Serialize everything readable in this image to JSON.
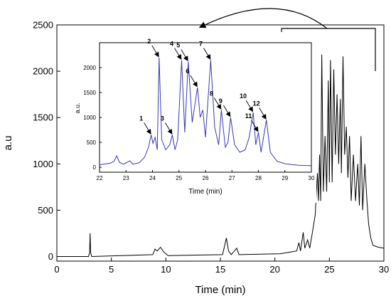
{
  "chart_data": [
    {
      "type": "line",
      "xlabel": "Time (min)",
      "ylabel": "a.u",
      "xlim": [
        0,
        30
      ],
      "ylim": [
        -50,
        2500
      ],
      "xticks": [
        0,
        5,
        10,
        15,
        20,
        25,
        30
      ],
      "yticks": [
        0,
        500,
        1000,
        1500,
        2000,
        2500
      ],
      "grid": false,
      "series": [
        {
          "color": "#000000",
          "points": [
            [
              0,
              0
            ],
            [
              2.9,
              0
            ],
            [
              3.0,
              40
            ],
            [
              3.05,
              250
            ],
            [
              3.1,
              40
            ],
            [
              3.2,
              0
            ],
            [
              8.8,
              20
            ],
            [
              9.0,
              80
            ],
            [
              9.2,
              60
            ],
            [
              9.5,
              100
            ],
            [
              9.8,
              50
            ],
            [
              10.2,
              10
            ],
            [
              15.2,
              20
            ],
            [
              15.55,
              200
            ],
            [
              15.75,
              60
            ],
            [
              16.0,
              20
            ],
            [
              16.5,
              90
            ],
            [
              16.7,
              20
            ],
            [
              20.5,
              30
            ],
            [
              21.5,
              50
            ],
            [
              22.0,
              60
            ],
            [
              22.2,
              150
            ],
            [
              22.35,
              60
            ],
            [
              22.6,
              260
            ],
            [
              22.75,
              90
            ],
            [
              23.0,
              180
            ],
            [
              23.2,
              90
            ],
            [
              23.5,
              300
            ],
            [
              23.7,
              450
            ],
            [
              23.9,
              900
            ],
            [
              24.0,
              600
            ],
            [
              24.1,
              1100
            ],
            [
              24.2,
              600
            ],
            [
              24.3,
              2180
            ],
            [
              24.45,
              700
            ],
            [
              24.6,
              1300
            ],
            [
              24.75,
              700
            ],
            [
              24.9,
              1900
            ],
            [
              25.0,
              800
            ],
            [
              25.1,
              2120
            ],
            [
              25.25,
              800
            ],
            [
              25.4,
              2020
            ],
            [
              25.55,
              1100
            ],
            [
              25.7,
              1750
            ],
            [
              25.85,
              1000
            ],
            [
              26.0,
              1700
            ],
            [
              26.1,
              900
            ],
            [
              26.25,
              2160
            ],
            [
              26.4,
              1100
            ],
            [
              26.55,
              1400
            ],
            [
              26.7,
              850
            ],
            [
              26.85,
              1300
            ],
            [
              27.0,
              600
            ],
            [
              27.2,
              1100
            ],
            [
              27.4,
              600
            ],
            [
              27.6,
              1000
            ],
            [
              27.75,
              550
            ],
            [
              27.9,
              1300
            ],
            [
              28.05,
              500
            ],
            [
              28.25,
              1000
            ],
            [
              28.45,
              600
            ],
            [
              28.6,
              350
            ],
            [
              28.8,
              200
            ],
            [
              29.0,
              120
            ],
            [
              29.5,
              100
            ],
            [
              30,
              90
            ]
          ]
        }
      ],
      "annotations": [
        "bracket over 21–30 min",
        "curved arrow pointing to inset"
      ]
    },
    {
      "type": "line",
      "xlabel": "Time (min)",
      "ylabel": "a.u.",
      "xlim": [
        22,
        30
      ],
      "ylim": [
        -100,
        2500
      ],
      "xticks": [
        22,
        23,
        24,
        25,
        26,
        27,
        28,
        29,
        30
      ],
      "yticks": [
        0,
        500,
        1000,
        1500,
        2000
      ],
      "grid": false,
      "series": [
        {
          "color": "#3a3ab0",
          "points": [
            [
              22,
              50
            ],
            [
              22.4,
              80
            ],
            [
              22.55,
              120
            ],
            [
              22.65,
              230
            ],
            [
              22.75,
              100
            ],
            [
              22.9,
              60
            ],
            [
              23.05,
              100
            ],
            [
              23.15,
              130
            ],
            [
              23.25,
              60
            ],
            [
              23.5,
              90
            ],
            [
              23.7,
              200
            ],
            [
              23.85,
              400
            ],
            [
              23.95,
              650
            ],
            [
              24.02,
              480
            ],
            [
              24.1,
              600
            ],
            [
              24.18,
              350
            ],
            [
              24.25,
              2200
            ],
            [
              24.35,
              550
            ],
            [
              24.5,
              350
            ],
            [
              24.65,
              450
            ],
            [
              24.75,
              650
            ],
            [
              24.85,
              350
            ],
            [
              24.95,
              550
            ],
            [
              25.1,
              2150
            ],
            [
              25.22,
              700
            ],
            [
              25.35,
              2120
            ],
            [
              25.5,
              900
            ],
            [
              25.7,
              1600
            ],
            [
              25.8,
              1000
            ],
            [
              25.9,
              1150
            ],
            [
              26.0,
              600
            ],
            [
              26.2,
              2150
            ],
            [
              26.35,
              800
            ],
            [
              26.5,
              450
            ],
            [
              26.6,
              1150
            ],
            [
              26.75,
              400
            ],
            [
              26.85,
              500
            ],
            [
              26.95,
              1000
            ],
            [
              27.1,
              450
            ],
            [
              27.3,
              300
            ],
            [
              27.5,
              350
            ],
            [
              27.65,
              600
            ],
            [
              27.8,
              1100
            ],
            [
              27.9,
              450
            ],
            [
              28.0,
              700
            ],
            [
              28.1,
              300
            ],
            [
              28.3,
              950
            ],
            [
              28.45,
              300
            ],
            [
              28.7,
              120
            ],
            [
              29.0,
              70
            ],
            [
              29.5,
              40
            ],
            [
              30,
              30
            ]
          ]
        }
      ],
      "peak_labels": [
        {
          "label": "1",
          "x": 23.95,
          "y": 650
        },
        {
          "label": "2",
          "x": 24.25,
          "y": 2200
        },
        {
          "label": "3",
          "x": 24.75,
          "y": 650
        },
        {
          "label": "4",
          "x": 25.1,
          "y": 2150
        },
        {
          "label": "5",
          "x": 25.35,
          "y": 2120
        },
        {
          "label": "6",
          "x": 25.7,
          "y": 1600
        },
        {
          "label": "7",
          "x": 26.2,
          "y": 2150
        },
        {
          "label": "8",
          "x": 26.6,
          "y": 1150
        },
        {
          "label": "9",
          "x": 26.95,
          "y": 1000
        },
        {
          "label": "10",
          "x": 27.8,
          "y": 1100
        },
        {
          "label": "11",
          "x": 28.0,
          "y": 700
        },
        {
          "label": "12",
          "x": 28.3,
          "y": 950
        }
      ]
    }
  ]
}
